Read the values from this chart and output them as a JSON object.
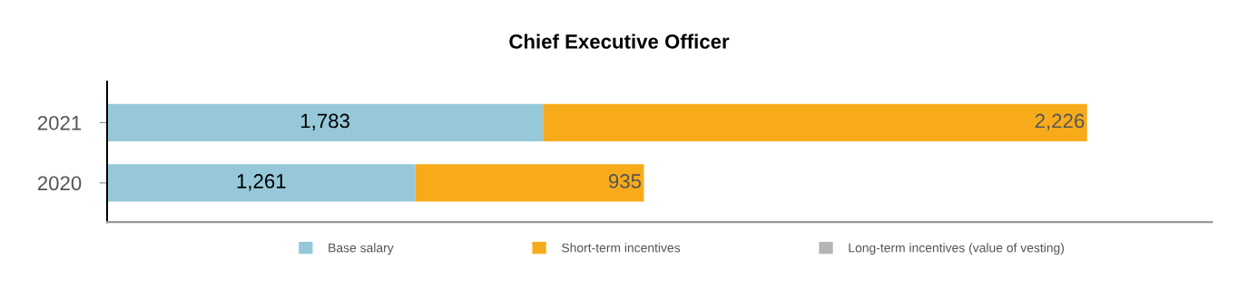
{
  "chart_data": {
    "type": "bar",
    "orientation": "horizontal",
    "stacked": true,
    "title": "Chief Executive Officer",
    "categories": [
      "2021",
      "2020"
    ],
    "series": [
      {
        "name": "Base salary",
        "color": "#96c8d9",
        "values": [
          1783,
          1261
        ],
        "value_labels": [
          "1,783",
          "1,261"
        ]
      },
      {
        "name": "Short-term incentives",
        "color": "#f8ab1a",
        "values": [
          2226,
          935
        ],
        "value_labels": [
          "2,226",
          "935"
        ]
      },
      {
        "name": "Long-term incentives (value of vesting)",
        "color": "#b5b5b5",
        "values": [
          null,
          null
        ]
      }
    ],
    "xlim": [
      0,
      4520
    ],
    "tick_labels": "y",
    "legend": "bottom",
    "grid": false
  }
}
